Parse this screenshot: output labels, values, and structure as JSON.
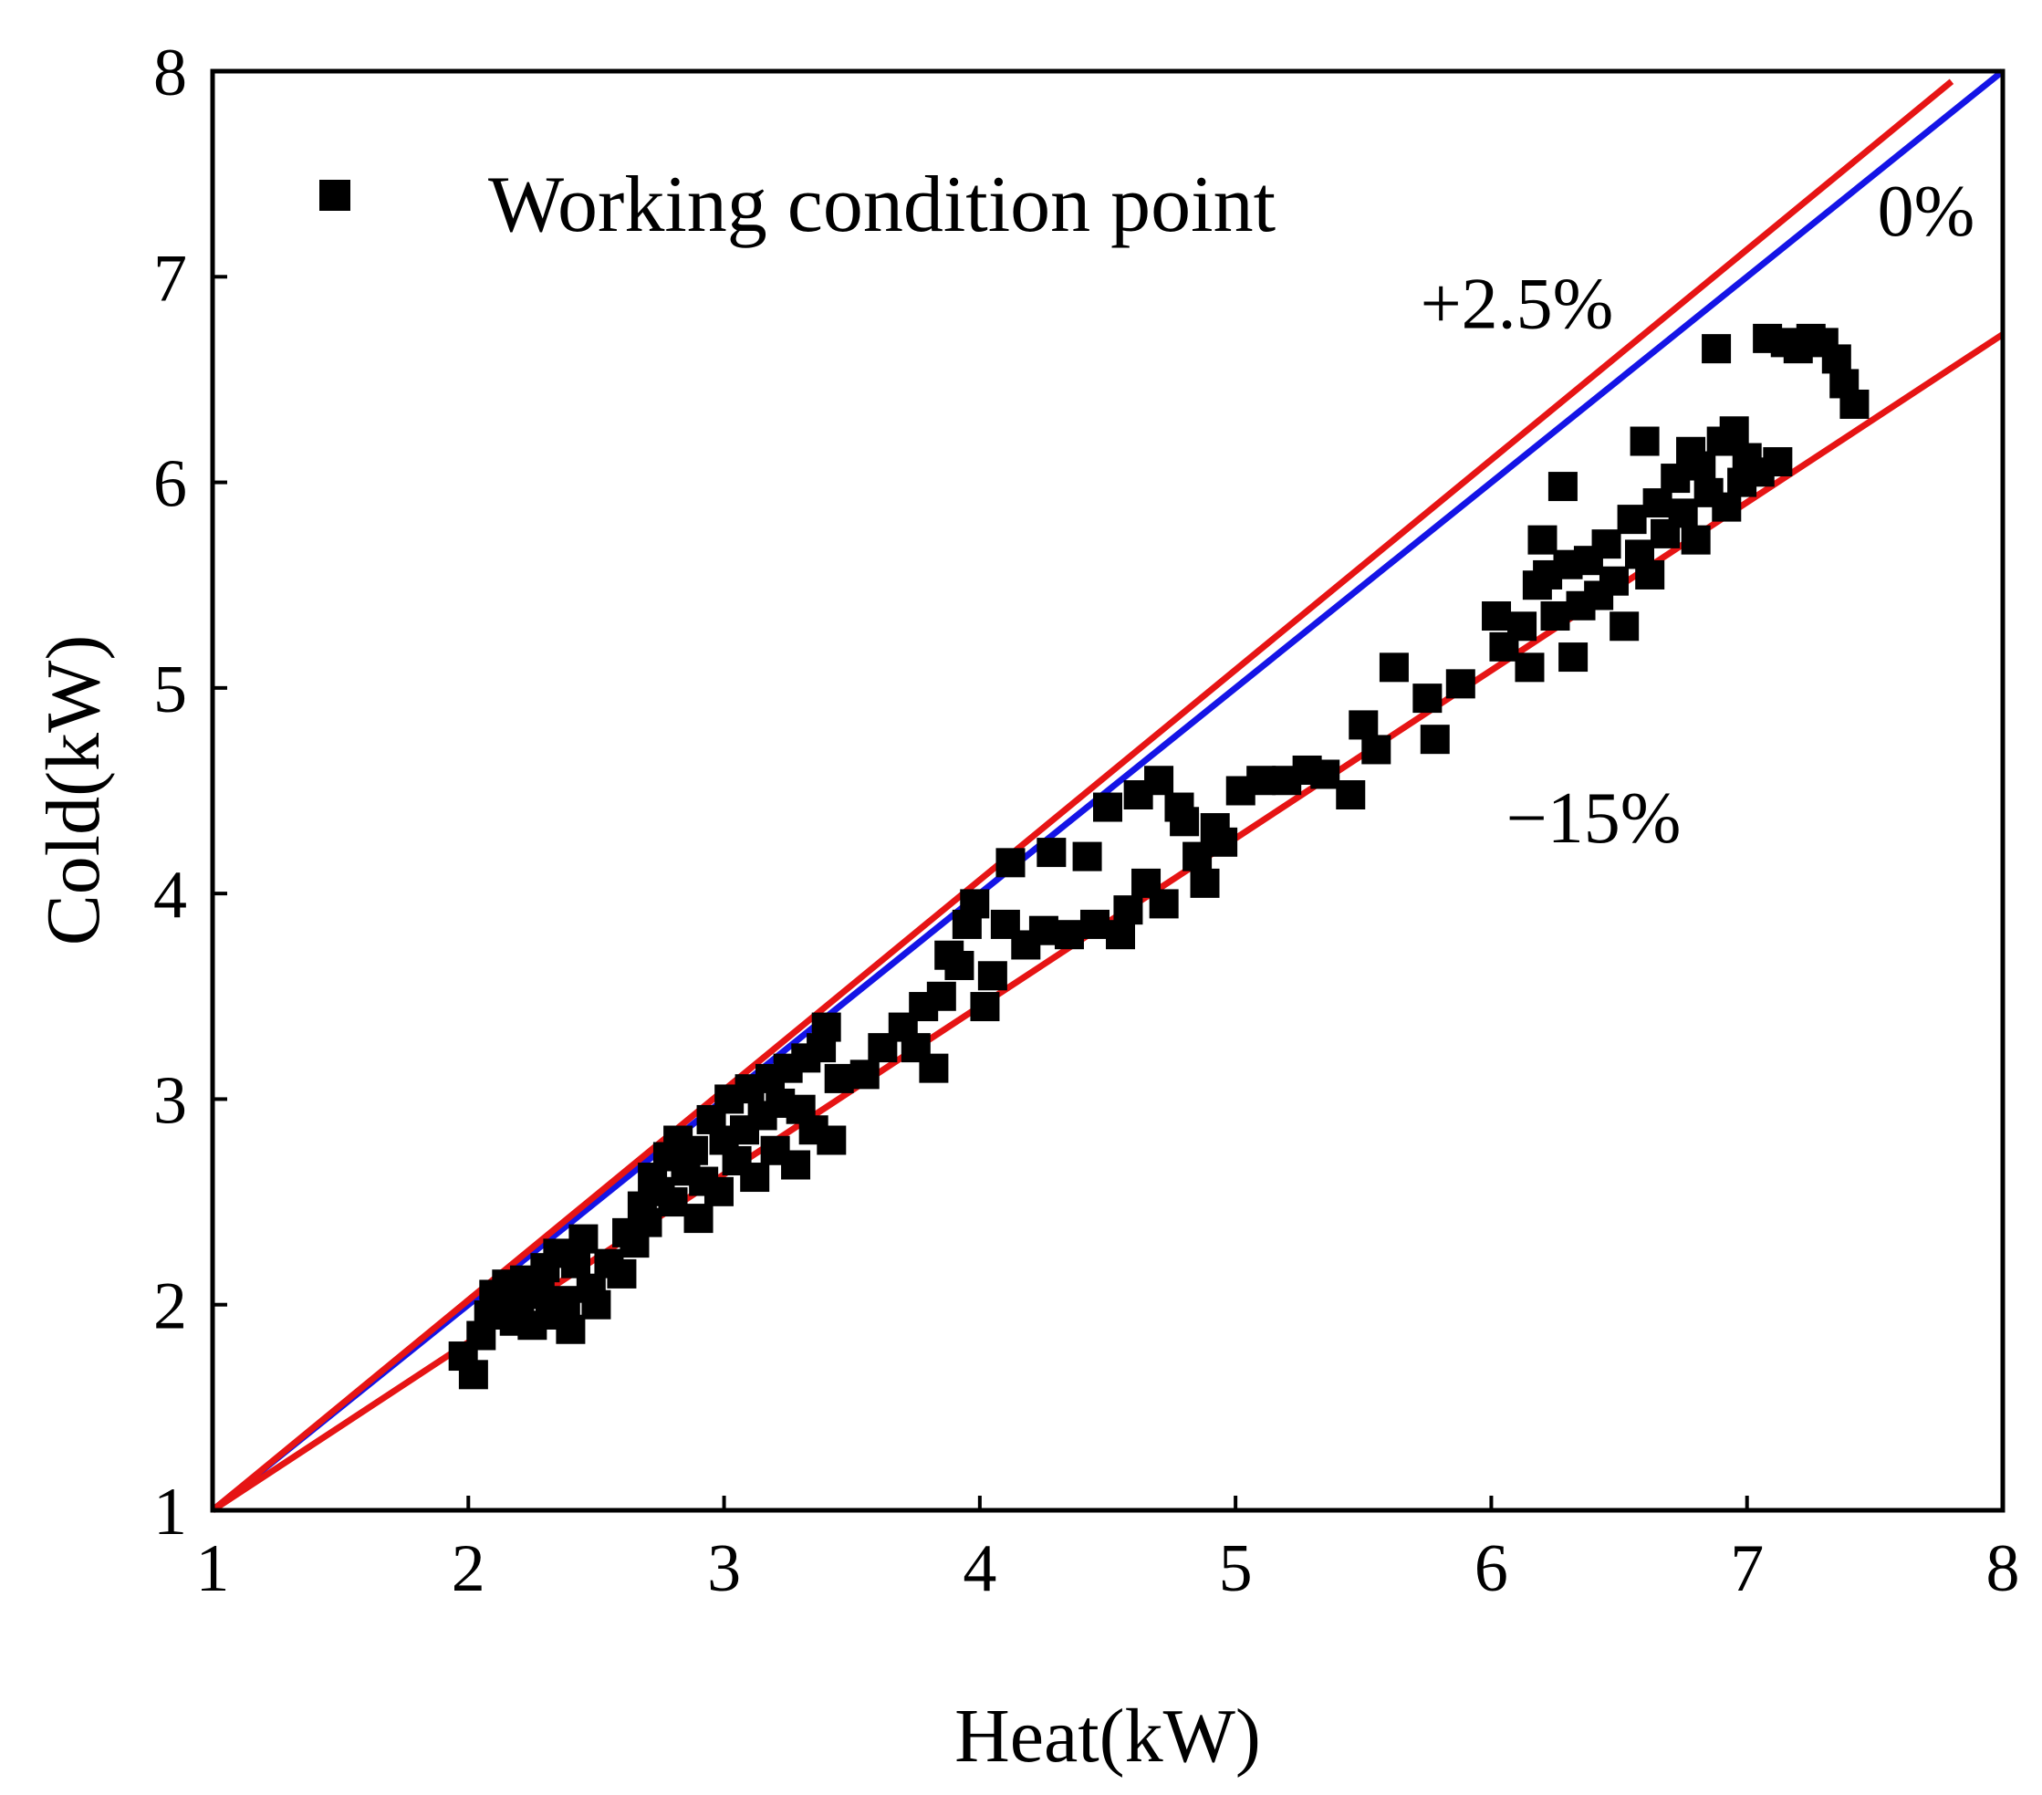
{
  "chart_data": {
    "type": "scatter",
    "xlabel": "Heat(kW)",
    "ylabel": "Cold(kW)",
    "xlim": [
      1,
      8
    ],
    "ylim": [
      1,
      8
    ],
    "xticks": [
      "1",
      "2",
      "3",
      "4",
      "5",
      "6",
      "7",
      "8"
    ],
    "yticks": [
      "1",
      "2",
      "3",
      "4",
      "5",
      "6",
      "7",
      "8"
    ],
    "grid": false,
    "legend": {
      "position": "top-left",
      "entries": [
        "Working condition point"
      ]
    },
    "colors": {
      "points": "#000000",
      "zero_line": "#1414e6",
      "bound_lines": "#e61414"
    },
    "lines": [
      {
        "label": "0%",
        "color": "#1414e6",
        "x": [
          1,
          8
        ],
        "y": [
          1,
          8
        ]
      },
      {
        "label": "+2.5%",
        "color": "#e61414",
        "x": [
          1,
          7.8
        ],
        "y": [
          1,
          7.95
        ]
      },
      {
        "label": "−15%",
        "color": "#e61414",
        "x": [
          1,
          8
        ],
        "y": [
          1,
          6.72
        ]
      }
    ],
    "series": [
      {
        "name": "Working condition point",
        "marker": "square",
        "color": "#000000",
        "points": [
          [
            1.98,
            1.75
          ],
          [
            2.02,
            1.66
          ],
          [
            2.05,
            1.85
          ],
          [
            2.08,
            1.95
          ],
          [
            2.1,
            2.05
          ],
          [
            2.12,
            1.98
          ],
          [
            2.15,
            2.1
          ],
          [
            2.18,
            1.92
          ],
          [
            2.2,
            2.0
          ],
          [
            2.22,
            2.12
          ],
          [
            2.25,
            1.9
          ],
          [
            2.28,
            2.05
          ],
          [
            2.3,
            2.18
          ],
          [
            2.32,
            1.95
          ],
          [
            2.35,
            2.25
          ],
          [
            2.38,
            2.02
          ],
          [
            2.4,
            1.88
          ],
          [
            2.42,
            2.2
          ],
          [
            2.45,
            2.32
          ],
          [
            2.48,
            2.08
          ],
          [
            2.5,
            2.0
          ],
          [
            2.55,
            2.2
          ],
          [
            2.6,
            2.15
          ],
          [
            2.62,
            2.35
          ],
          [
            2.65,
            2.3
          ],
          [
            2.68,
            2.48
          ],
          [
            2.7,
            2.4
          ],
          [
            2.72,
            2.62
          ],
          [
            2.75,
            2.55
          ],
          [
            2.78,
            2.72
          ],
          [
            2.8,
            2.5
          ],
          [
            2.82,
            2.8
          ],
          [
            2.85,
            2.65
          ],
          [
            2.88,
            2.75
          ],
          [
            2.9,
            2.42
          ],
          [
            2.92,
            2.6
          ],
          [
            2.95,
            2.9
          ],
          [
            2.98,
            2.55
          ],
          [
            3.0,
            2.8
          ],
          [
            3.02,
            3.0
          ],
          [
            3.05,
            2.7
          ],
          [
            3.08,
            2.85
          ],
          [
            3.1,
            3.05
          ],
          [
            3.12,
            2.62
          ],
          [
            3.15,
            2.92
          ],
          [
            3.18,
            3.1
          ],
          [
            3.2,
            2.75
          ],
          [
            3.22,
            2.98
          ],
          [
            3.25,
            3.15
          ],
          [
            3.28,
            2.68
          ],
          [
            3.3,
            2.95
          ],
          [
            3.32,
            3.2
          ],
          [
            3.35,
            2.85
          ],
          [
            3.38,
            3.25
          ],
          [
            3.4,
            3.35
          ],
          [
            3.42,
            2.8
          ],
          [
            3.45,
            3.1
          ],
          [
            3.55,
            3.12
          ],
          [
            3.62,
            3.25
          ],
          [
            3.7,
            3.35
          ],
          [
            3.75,
            3.25
          ],
          [
            3.78,
            3.45
          ],
          [
            3.82,
            3.15
          ],
          [
            3.85,
            3.5
          ],
          [
            3.88,
            3.7
          ],
          [
            3.92,
            3.65
          ],
          [
            3.95,
            3.85
          ],
          [
            3.98,
            3.95
          ],
          [
            4.02,
            3.45
          ],
          [
            4.05,
            3.6
          ],
          [
            4.1,
            3.85
          ],
          [
            4.12,
            4.15
          ],
          [
            4.18,
            3.75
          ],
          [
            4.25,
            3.82
          ],
          [
            4.28,
            4.2
          ],
          [
            4.35,
            3.8
          ],
          [
            4.42,
            4.18
          ],
          [
            4.45,
            3.85
          ],
          [
            4.5,
            4.42
          ],
          [
            4.55,
            3.8
          ],
          [
            4.58,
            3.92
          ],
          [
            4.62,
            4.48
          ],
          [
            4.65,
            4.05
          ],
          [
            4.7,
            4.55
          ],
          [
            4.72,
            3.95
          ],
          [
            4.78,
            4.42
          ],
          [
            4.8,
            4.35
          ],
          [
            4.85,
            4.18
          ],
          [
            4.88,
            4.05
          ],
          [
            4.92,
            4.32
          ],
          [
            4.95,
            4.25
          ],
          [
            5.02,
            4.5
          ],
          [
            5.1,
            4.55
          ],
          [
            5.2,
            4.55
          ],
          [
            5.28,
            4.6
          ],
          [
            5.35,
            4.58
          ],
          [
            5.45,
            4.48
          ],
          [
            5.5,
            4.82
          ],
          [
            5.55,
            4.7
          ],
          [
            5.62,
            5.1
          ],
          [
            5.75,
            4.95
          ],
          [
            5.78,
            4.75
          ],
          [
            5.88,
            5.02
          ],
          [
            6.02,
            5.35
          ],
          [
            6.05,
            5.2
          ],
          [
            6.12,
            5.3
          ],
          [
            6.15,
            5.1
          ],
          [
            6.18,
            5.5
          ],
          [
            6.2,
            5.72
          ],
          [
            6.22,
            5.55
          ],
          [
            6.25,
            5.35
          ],
          [
            6.28,
            5.98
          ],
          [
            6.3,
            5.6
          ],
          [
            6.32,
            5.15
          ],
          [
            6.35,
            5.4
          ],
          [
            6.38,
            5.62
          ],
          [
            6.42,
            5.45
          ],
          [
            6.45,
            5.7
          ],
          [
            6.48,
            5.52
          ],
          [
            6.52,
            5.3
          ],
          [
            6.55,
            5.82
          ],
          [
            6.58,
            5.65
          ],
          [
            6.6,
            6.2
          ],
          [
            6.62,
            5.55
          ],
          [
            6.65,
            5.9
          ],
          [
            6.68,
            5.75
          ],
          [
            6.72,
            6.02
          ],
          [
            6.75,
            5.85
          ],
          [
            6.78,
            6.15
          ],
          [
            6.8,
            5.72
          ],
          [
            6.82,
            6.08
          ],
          [
            6.85,
            5.95
          ],
          [
            6.88,
            6.65
          ],
          [
            6.9,
            6.2
          ],
          [
            6.92,
            5.88
          ],
          [
            6.95,
            6.25
          ],
          [
            6.98,
            6.0
          ],
          [
            7.0,
            6.12
          ],
          [
            7.05,
            6.05
          ],
          [
            7.08,
            6.7
          ],
          [
            7.12,
            6.1
          ],
          [
            7.15,
            6.68
          ],
          [
            7.2,
            6.65
          ],
          [
            7.25,
            6.7
          ],
          [
            7.3,
            6.68
          ],
          [
            7.35,
            6.6
          ],
          [
            7.38,
            6.48
          ],
          [
            7.42,
            6.38
          ]
        ]
      }
    ],
    "annotations": [
      {
        "text": "0%",
        "x": 7.7,
        "y": 7.2
      },
      {
        "text": "+2.5%",
        "x": 6.1,
        "y": 6.75
      },
      {
        "text": "−15%",
        "x": 6.4,
        "y": 4.25
      }
    ]
  }
}
